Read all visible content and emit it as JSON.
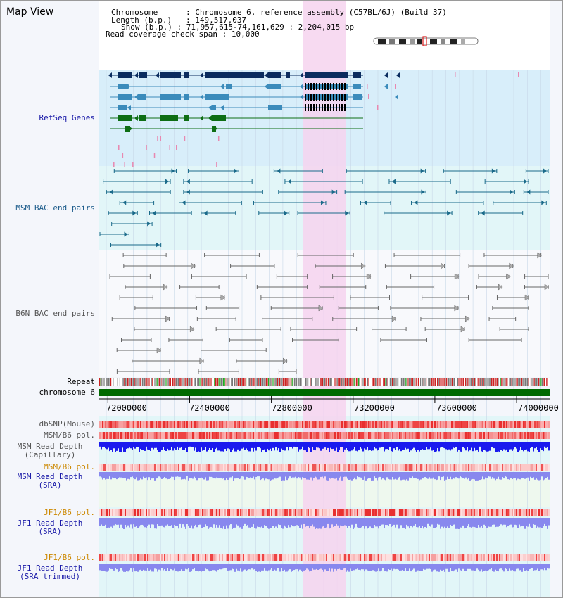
{
  "title": "Map View",
  "info": {
    "chromosome_key": "Chromosome",
    "chromosome_val": "Chromosome 6, reference assembly (C57BL/6J) (Build 37)",
    "length_key": "Length (b.p.)",
    "length_val": "149,517,037",
    "show_key": "Show (b.p.)",
    "show_val": "71,957,615-74,161,629 : 2,204,015 bp",
    "coverage_key": "Read coverage check span",
    "coverage_val": "10,000"
  },
  "tracks": {
    "refseq": "RefSeq Genes",
    "msm_bac": "MSM BAC end pairs",
    "b6n_bac": "B6N BAC end pairs",
    "repeat": "Repeat",
    "chromosome": "chromosome 6",
    "dbsnp": "dbSNP(Mouse)",
    "msm_b6_pol_1": "MSM/B6 pol.",
    "msm_depth_cap_1": "MSM Read Depth",
    "msm_depth_cap_2": "(Capillary)",
    "msm_b6_pol_2": "MSM/B6 pol.",
    "msm_depth_sra_1": "MSM Read Depth",
    "msm_depth_sra_2": "(SRA)",
    "jf1_b6_pol_1": "JF1/B6 pol.",
    "jf1_depth_sra_1": "JF1 Read Depth",
    "jf1_depth_sra_2": "(SRA)",
    "jf1_b6_pol_2": "JF1/B6 pol.",
    "jf1_depth_trim_1": "JF1 Read Depth",
    "jf1_depth_trim_2": "(SRA trimmed)"
  },
  "scale": {
    "ticks": [
      "72000000",
      "72400000",
      "72800000",
      "73200000",
      "73600000",
      "74000000"
    ],
    "tick_bp": [
      72000000,
      72400000,
      72800000,
      73200000,
      73600000,
      74000000
    ],
    "start_bp": 71957615,
    "end_bp": 74161629
  },
  "colors": {
    "highlight": "#f6d4ee",
    "refseq_bg": "#d8eefa",
    "msm_bg": "#e2f6f8",
    "gene_navy": "#0b2c5f",
    "gene_steel": "#3b8bbb",
    "gene_green": "#0e6e14",
    "bac_msm": "#1a6a8a",
    "bac_b6n": "#666666",
    "refseq_label": "#1a1aa8",
    "msm_label": "#1a5a8a",
    "b6n_label": "#555555",
    "gold_label": "#cc8800",
    "depth_blue": "#1a1aee",
    "depth_light": "#8888ee"
  }
}
